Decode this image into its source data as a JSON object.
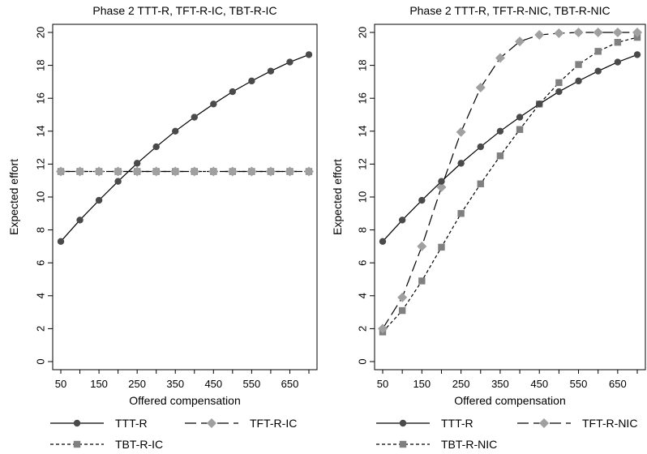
{
  "chart_data": [
    {
      "type": "line",
      "title": "Phase 2 TTT-R, TFT-R-IC, TBT-R-IC",
      "xlabel": "Offered compensation",
      "ylabel": "Expected effort",
      "xlim": [
        50,
        700
      ],
      "ylim": [
        0,
        20
      ],
      "xticks": [
        "50",
        "150",
        "250",
        "350",
        "450",
        "550",
        "650"
      ],
      "yticks": [
        "0",
        "2",
        "4",
        "6",
        "8",
        "10",
        "12",
        "14",
        "16",
        "18",
        "20"
      ],
      "grid": false,
      "legend_position": "bottom",
      "x": [
        50,
        100,
        150,
        200,
        250,
        300,
        350,
        400,
        450,
        500,
        550,
        600,
        650,
        700
      ],
      "series": [
        {
          "name": "TTT-R",
          "values": [
            7.3,
            8.6,
            9.8,
            10.95,
            12.05,
            13.05,
            14.0,
            14.85,
            15.65,
            16.4,
            17.05,
            17.65,
            18.2,
            18.65
          ],
          "color": "#4a4a4a",
          "marker": "circle",
          "dash": "solid"
        },
        {
          "name": "TFT-R-IC",
          "values": [
            11.55,
            11.55,
            11.55,
            11.55,
            11.55,
            11.55,
            11.55,
            11.55,
            11.55,
            11.55,
            11.55,
            11.55,
            11.55,
            11.55
          ],
          "color": "#a0a0a0",
          "marker": "diamond",
          "dash": "longdash"
        },
        {
          "name": "TBT-R-IC",
          "values": [
            11.55,
            11.55,
            11.55,
            11.55,
            11.55,
            11.55,
            11.55,
            11.55,
            11.55,
            11.55,
            11.55,
            11.55,
            11.55,
            11.55
          ],
          "color": "#808080",
          "marker": "square",
          "dash": "shortdash"
        }
      ]
    },
    {
      "type": "line",
      "title": "Phase 2 TTT-R, TFT-R-NIC, TBT-R-NIC",
      "xlabel": "Offered compensation",
      "ylabel": "Expected effort",
      "xlim": [
        50,
        700
      ],
      "ylim": [
        0,
        20
      ],
      "xticks": [
        "50",
        "150",
        "250",
        "350",
        "450",
        "550",
        "650"
      ],
      "yticks": [
        "0",
        "2",
        "4",
        "6",
        "8",
        "10",
        "12",
        "14",
        "16",
        "18",
        "20"
      ],
      "grid": false,
      "legend_position": "bottom",
      "x": [
        50,
        100,
        150,
        200,
        250,
        300,
        350,
        400,
        450,
        500,
        550,
        600,
        650,
        700
      ],
      "series": [
        {
          "name": "TTT-R",
          "values": [
            7.3,
            8.6,
            9.8,
            10.95,
            12.05,
            13.05,
            14.0,
            14.85,
            15.65,
            16.4,
            17.05,
            17.65,
            18.2,
            18.65
          ],
          "color": "#4a4a4a",
          "marker": "circle",
          "dash": "solid"
        },
        {
          "name": "TFT-R-NIC",
          "values": [
            2.0,
            3.9,
            7.0,
            10.6,
            13.95,
            16.65,
            18.45,
            19.45,
            19.85,
            19.95,
            20.0,
            20.0,
            20.0,
            20.0
          ],
          "color": "#a0a0a0",
          "marker": "diamond",
          "dash": "longdash"
        },
        {
          "name": "TBT-R-NIC",
          "values": [
            1.8,
            3.1,
            4.9,
            6.95,
            9.0,
            10.8,
            12.5,
            14.1,
            15.65,
            16.95,
            18.05,
            18.85,
            19.4,
            19.7
          ],
          "color": "#808080",
          "marker": "square",
          "dash": "shortdash"
        }
      ]
    }
  ]
}
